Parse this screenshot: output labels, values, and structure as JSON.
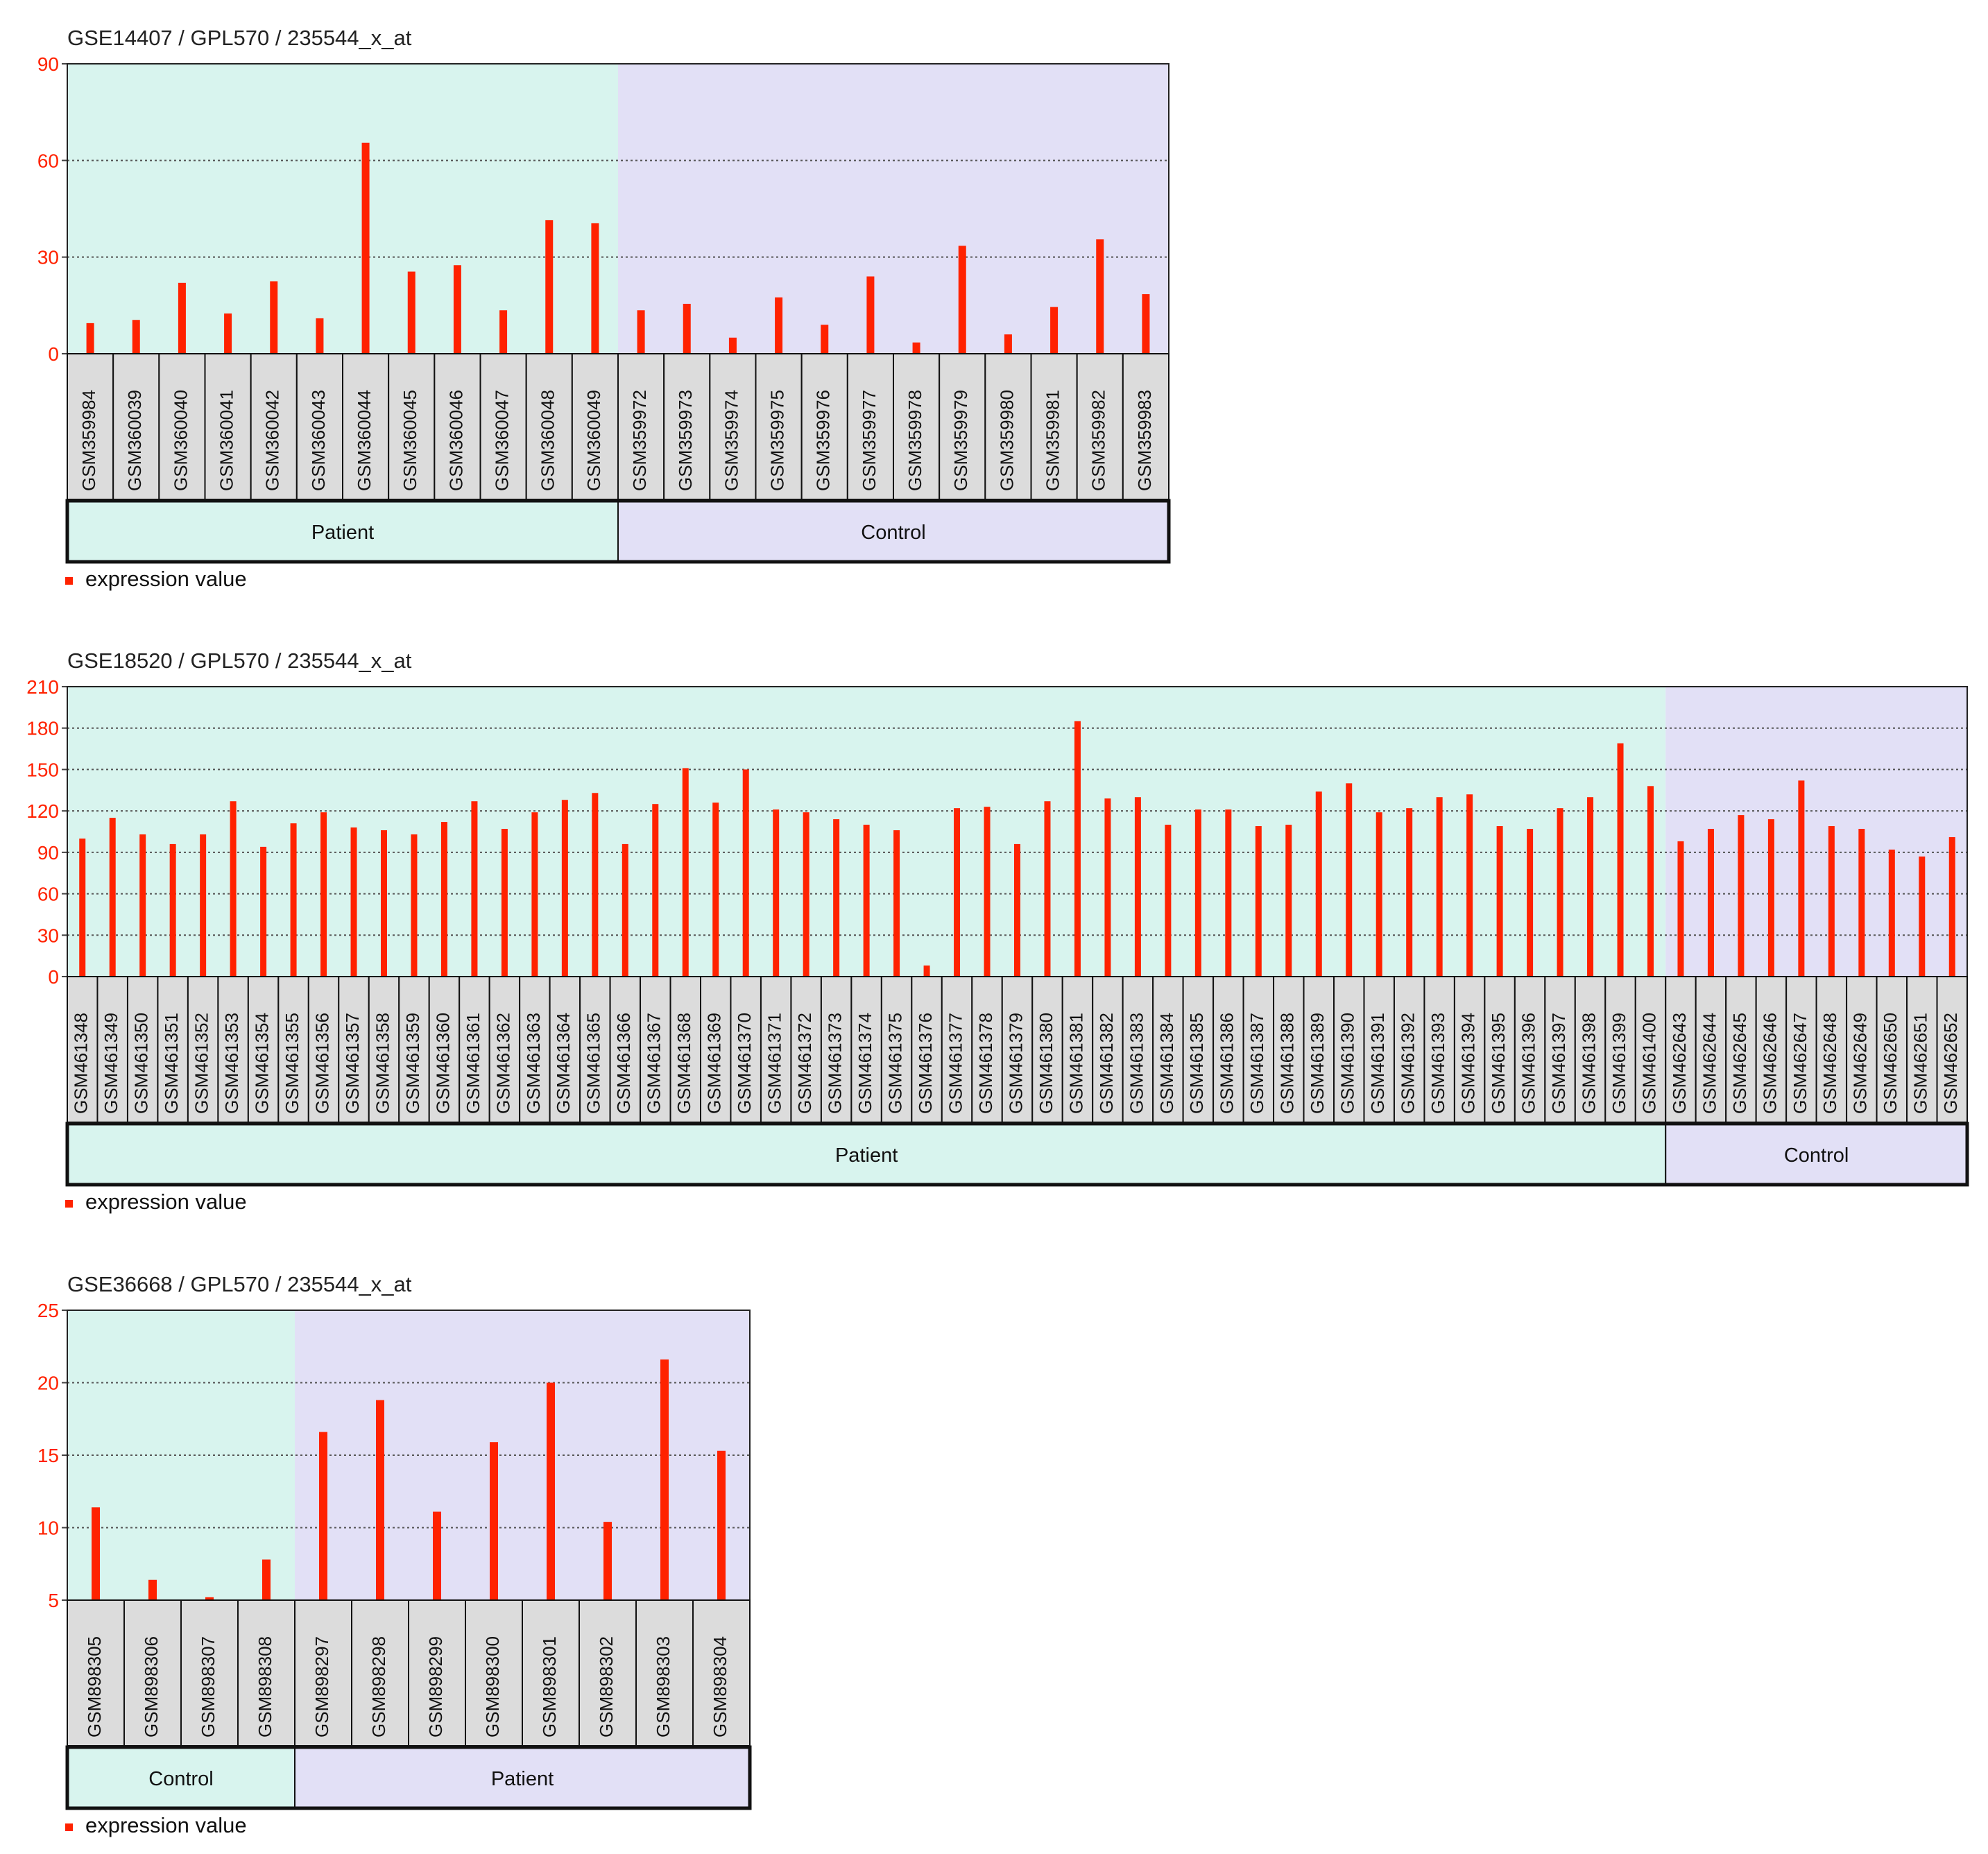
{
  "chart_data": [
    {
      "type": "bar",
      "title": "GSE14407 / GPL570 / 235544_x_at",
      "xlabel": "",
      "ylabel": "",
      "ylim": [
        0,
        90
      ],
      "yticks": [
        "0",
        "30",
        "60",
        "90"
      ],
      "legend": {
        "label": "expression value",
        "color": "#ff2200",
        "position": "bottom-left"
      },
      "categories": [
        "GSM359984",
        "GSM360039",
        "GSM360040",
        "GSM360041",
        "GSM360042",
        "GSM360043",
        "GSM360044",
        "GSM360045",
        "GSM360046",
        "GSM360047",
        "GSM360048",
        "GSM360049",
        "GSM359972",
        "GSM359973",
        "GSM359974",
        "GSM359975",
        "GSM359976",
        "GSM359977",
        "GSM359978",
        "GSM359979",
        "GSM359980",
        "GSM359981",
        "GSM359982",
        "GSM359983"
      ],
      "series": [
        {
          "name": "expression value",
          "values": [
            9.5,
            10.5,
            22,
            12.5,
            22.5,
            11,
            65.5,
            25.5,
            27.5,
            13.5,
            41.5,
            40.5,
            13.5,
            15.5,
            5,
            17.5,
            9,
            24,
            3.5,
            33.5,
            6,
            14.5,
            35.5,
            18.5
          ]
        }
      ],
      "groups": [
        {
          "label": "Patient",
          "count": 12,
          "color": "#d8f4ee"
        },
        {
          "label": "Control",
          "count": 12,
          "color": "#e2e0f6"
        }
      ]
    },
    {
      "type": "bar",
      "title": "GSE18520 / GPL570 / 235544_x_at",
      "xlabel": "",
      "ylabel": "",
      "ylim": [
        0,
        210
      ],
      "yticks": [
        "0",
        "30",
        "60",
        "90",
        "120",
        "150",
        "180",
        "210"
      ],
      "legend": {
        "label": "expression value",
        "color": "#ff2200",
        "position": "bottom-left"
      },
      "categories": [
        "GSM461348",
        "GSM461349",
        "GSM461350",
        "GSM461351",
        "GSM461352",
        "GSM461353",
        "GSM461354",
        "GSM461355",
        "GSM461356",
        "GSM461357",
        "GSM461358",
        "GSM461359",
        "GSM461360",
        "GSM461361",
        "GSM461362",
        "GSM461363",
        "GSM461364",
        "GSM461365",
        "GSM461366",
        "GSM461367",
        "GSM461368",
        "GSM461369",
        "GSM461370",
        "GSM461371",
        "GSM461372",
        "GSM461373",
        "GSM461374",
        "GSM461375",
        "GSM461376",
        "GSM461377",
        "GSM461378",
        "GSM461379",
        "GSM461380",
        "GSM461381",
        "GSM461382",
        "GSM461383",
        "GSM461384",
        "GSM461385",
        "GSM461386",
        "GSM461387",
        "GSM461388",
        "GSM461389",
        "GSM461390",
        "GSM461391",
        "GSM461392",
        "GSM461393",
        "GSM461394",
        "GSM461395",
        "GSM461396",
        "GSM461397",
        "GSM461398",
        "GSM461399",
        "GSM461400",
        "GSM462643",
        "GSM462644",
        "GSM462645",
        "GSM462646",
        "GSM462647",
        "GSM462648",
        "GSM462649",
        "GSM462650",
        "GSM462651",
        "GSM462652"
      ],
      "series": [
        {
          "name": "expression value",
          "values": [
            100,
            115,
            103,
            96,
            103,
            127,
            94,
            111,
            119,
            108,
            106,
            103,
            112,
            127,
            107,
            119,
            128,
            133,
            96,
            125,
            151,
            126,
            150,
            121,
            119,
            114,
            110,
            106,
            8,
            122,
            123,
            96,
            127,
            185,
            129,
            130,
            110,
            121,
            121,
            109,
            110,
            134,
            140,
            119,
            122,
            130,
            132,
            109,
            107,
            122,
            130,
            169,
            138,
            98,
            107,
            117,
            114,
            142,
            109,
            107,
            92,
            87,
            101
          ]
        }
      ],
      "groups": [
        {
          "label": "Patient",
          "count": 53,
          "color": "#d8f4ee"
        },
        {
          "label": "Control",
          "count": 10,
          "color": "#e2e0f6"
        }
      ]
    },
    {
      "type": "bar",
      "title": "GSE36668 / GPL570 / 235544_x_at",
      "xlabel": "",
      "ylabel": "",
      "ylim": [
        5,
        25
      ],
      "yticks": [
        "5",
        "10",
        "15",
        "20",
        "25"
      ],
      "legend": {
        "label": "expression value",
        "color": "#ff2200",
        "position": "bottom-left"
      },
      "categories": [
        "GSM898305",
        "GSM898306",
        "GSM898307",
        "GSM898308",
        "GSM898297",
        "GSM898298",
        "GSM898299",
        "GSM898300",
        "GSM898301",
        "GSM898302",
        "GSM898303",
        "GSM898304"
      ],
      "series": [
        {
          "name": "expression value",
          "values": [
            11.4,
            6.4,
            5.2,
            7.8,
            16.6,
            18.8,
            11.1,
            15.9,
            20,
            10.4,
            21.6,
            15.3
          ]
        }
      ],
      "groups": [
        {
          "label": "Control",
          "count": 4,
          "color": "#d8f4ee"
        },
        {
          "label": "Patient",
          "count": 8,
          "color": "#e2e0f6"
        }
      ]
    }
  ]
}
